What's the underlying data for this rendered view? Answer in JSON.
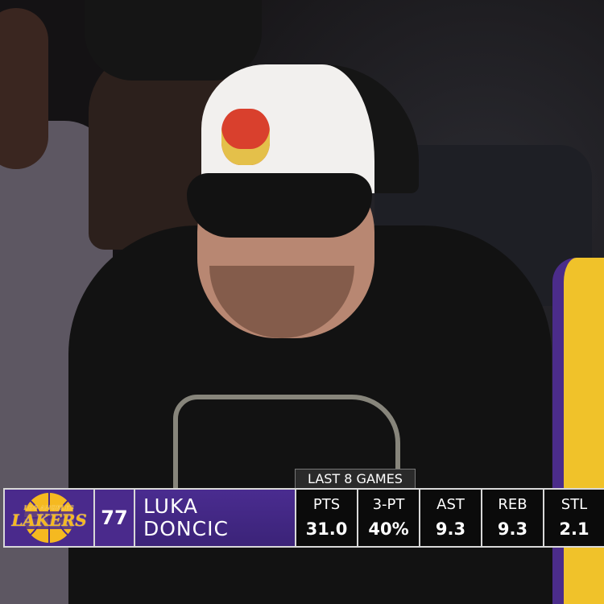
{
  "overlay": {
    "header": "LAST 8 GAMES",
    "team_logo_text": "LOS ANGELES LAKERS",
    "jersey_number": "77",
    "first_name": "LUKA",
    "last_name": "DONCIC",
    "stats": [
      {
        "label": "PTS",
        "value": "31.0"
      },
      {
        "label": "3-PT",
        "value": "40%"
      },
      {
        "label": "AST",
        "value": "9.3"
      },
      {
        "label": "REB",
        "value": "9.3"
      },
      {
        "label": "STL",
        "value": "2.1"
      }
    ],
    "colors": {
      "purple": "#4a2a8c",
      "gold": "#f5b920",
      "stat_bg": "#0b0b0b"
    }
  }
}
